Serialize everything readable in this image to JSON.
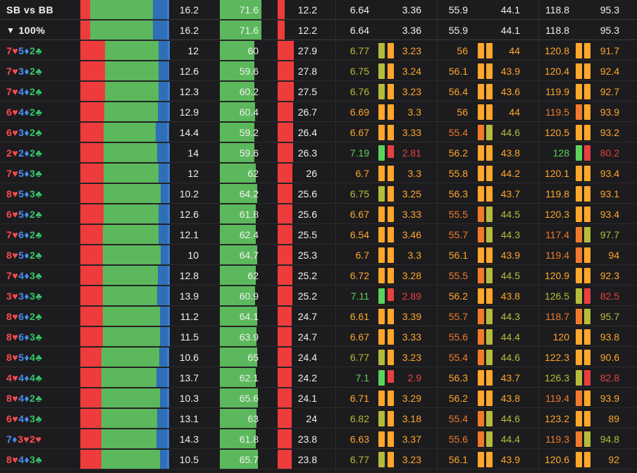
{
  "colors": {
    "fold": "#ee3b3b",
    "call": "#5cb85c",
    "raise_dark": "#2f6fb8",
    "raise_light": "#3b82d6",
    "lvl_green": "#5bd35b",
    "lvl_olive": "#b7bb3a",
    "lvl_orange": "#ffa62b",
    "lvl_dorange": "#f07a2a",
    "lvl_red": "#e84040"
  },
  "header": {
    "title": "SB vs BB",
    "filter_label": "100%",
    "filter_icon": "filter-icon",
    "values": [
      "16.2",
      "71.6",
      "12.2",
      "6.64",
      "3.36",
      "55.9",
      "44.1",
      "118.8",
      "95.3"
    ],
    "strategy": {
      "fold": 0.11,
      "call": 0.71,
      "raise_a": 0.16,
      "raise_b": 0.02
    },
    "bar3": 0.122
  },
  "rows": [
    {
      "hand": [
        [
          "7",
          "♥",
          "r"
        ],
        [
          "5",
          "♦",
          "b"
        ],
        [
          "2",
          "♣",
          "g"
        ]
      ],
      "strategy": {
        "fold": 0.28,
        "call": 0.6,
        "raise_a": 0.1,
        "raise_b": 0.02
      },
      "v1": "12",
      "v2": "60",
      "v3": "27.9",
      "bar3": 0.279,
      "e1": "6.77",
      "e2": "3.23",
      "eq1": "56",
      "eq2": "44",
      "ev1": "120.8",
      "ev2": "91.7",
      "lv": [
        "olive",
        "orange",
        "orange",
        "orange",
        "orange",
        "orange"
      ]
    },
    {
      "hand": [
        [
          "7",
          "♥",
          "r"
        ],
        [
          "3",
          "♦",
          "b"
        ],
        [
          "2",
          "♣",
          "g"
        ]
      ],
      "strategy": {
        "fold": 0.28,
        "call": 0.6,
        "raise_a": 0.11,
        "raise_b": 0.01
      },
      "v1": "12.6",
      "v2": "59.6",
      "v3": "27.8",
      "bar3": 0.278,
      "e1": "6.75",
      "e2": "3.24",
      "eq1": "56.1",
      "eq2": "43.9",
      "ev1": "120.4",
      "ev2": "92.4",
      "lv": [
        "olive",
        "orange",
        "orange",
        "orange",
        "orange",
        "orange"
      ]
    },
    {
      "hand": [
        [
          "7",
          "♥",
          "r"
        ],
        [
          "4",
          "♦",
          "b"
        ],
        [
          "2",
          "♣",
          "g"
        ]
      ],
      "strategy": {
        "fold": 0.28,
        "call": 0.6,
        "raise_a": 0.1,
        "raise_b": 0.02
      },
      "v1": "12.3",
      "v2": "60.2",
      "v3": "27.5",
      "bar3": 0.275,
      "e1": "6.76",
      "e2": "3.23",
      "eq1": "56.4",
      "eq2": "43.6",
      "ev1": "119.9",
      "ev2": "92.7",
      "lv": [
        "olive",
        "orange",
        "orange",
        "orange",
        "orange",
        "orange"
      ]
    },
    {
      "hand": [
        [
          "6",
          "♥",
          "r"
        ],
        [
          "4",
          "♦",
          "b"
        ],
        [
          "2",
          "♣",
          "g"
        ]
      ],
      "strategy": {
        "fold": 0.27,
        "call": 0.6,
        "raise_a": 0.11,
        "raise_b": 0.02
      },
      "v1": "12.9",
      "v2": "60.4",
      "v3": "26.7",
      "bar3": 0.267,
      "e1": "6.69",
      "e2": "3.3",
      "eq1": "56",
      "eq2": "44",
      "ev1": "119.5",
      "ev2": "93.9",
      "lv": [
        "orange",
        "orange",
        "orange",
        "orange",
        "dorange",
        "orange"
      ]
    },
    {
      "hand": [
        [
          "6",
          "♥",
          "r"
        ],
        [
          "3",
          "♦",
          "b"
        ],
        [
          "2",
          "♣",
          "g"
        ]
      ],
      "strategy": {
        "fold": 0.26,
        "call": 0.59,
        "raise_a": 0.13,
        "raise_b": 0.02
      },
      "v1": "14.4",
      "v2": "59.2",
      "v3": "26.4",
      "bar3": 0.264,
      "e1": "6.67",
      "e2": "3.33",
      "eq1": "55.4",
      "eq2": "44.6",
      "ev1": "120.5",
      "ev2": "93.2",
      "lv": [
        "orange",
        "orange",
        "dorange",
        "olive",
        "orange",
        "orange"
      ]
    },
    {
      "hand": [
        [
          "2",
          "♥",
          "r"
        ],
        [
          "2",
          "♦",
          "b"
        ],
        [
          "2",
          "♣",
          "g"
        ]
      ],
      "strategy": {
        "fold": 0.26,
        "call": 0.6,
        "raise_a": 0.12,
        "raise_b": 0.02
      },
      "v1": "14",
      "v2": "59.6",
      "v3": "26.3",
      "bar3": 0.263,
      "e1": "7.19",
      "e2": "2.81",
      "eq1": "56.2",
      "eq2": "43.8",
      "ev1": "128",
      "ev2": "80.2",
      "lv": [
        "green",
        "red",
        "orange",
        "orange",
        "green",
        "red"
      ]
    },
    {
      "hand": [
        [
          "7",
          "♥",
          "r"
        ],
        [
          "5",
          "♦",
          "b"
        ],
        [
          "3",
          "♣",
          "g"
        ]
      ],
      "strategy": {
        "fold": 0.26,
        "call": 0.62,
        "raise_a": 0.1,
        "raise_b": 0.02
      },
      "v1": "12",
      "v2": "62",
      "v3": "26",
      "bar3": 0.26,
      "e1": "6.7",
      "e2": "3.3",
      "eq1": "55.8",
      "eq2": "44.2",
      "ev1": "120.1",
      "ev2": "93.4",
      "lv": [
        "orange",
        "orange",
        "orange",
        "orange",
        "orange",
        "orange"
      ]
    },
    {
      "hand": [
        [
          "8",
          "♥",
          "r"
        ],
        [
          "5",
          "♦",
          "b"
        ],
        [
          "3",
          "♣",
          "g"
        ]
      ],
      "strategy": {
        "fold": 0.26,
        "call": 0.64,
        "raise_a": 0.08,
        "raise_b": 0.02
      },
      "v1": "10.2",
      "v2": "64.2",
      "v3": "25.6",
      "bar3": 0.256,
      "e1": "6.75",
      "e2": "3.25",
      "eq1": "56.3",
      "eq2": "43.7",
      "ev1": "119.8",
      "ev2": "93.1",
      "lv": [
        "olive",
        "orange",
        "orange",
        "orange",
        "orange",
        "orange"
      ]
    },
    {
      "hand": [
        [
          "6",
          "♥",
          "r"
        ],
        [
          "5",
          "♦",
          "b"
        ],
        [
          "2",
          "♣",
          "g"
        ]
      ],
      "strategy": {
        "fold": 0.26,
        "call": 0.62,
        "raise_a": 0.1,
        "raise_b": 0.02
      },
      "v1": "12.6",
      "v2": "61.8",
      "v3": "25.6",
      "bar3": 0.256,
      "e1": "6.67",
      "e2": "3.33",
      "eq1": "55.5",
      "eq2": "44.5",
      "ev1": "120.3",
      "ev2": "93.4",
      "lv": [
        "orange",
        "orange",
        "dorange",
        "olive",
        "orange",
        "orange"
      ]
    },
    {
      "hand": [
        [
          "7",
          "♥",
          "r"
        ],
        [
          "6",
          "♦",
          "b"
        ],
        [
          "2",
          "♣",
          "g"
        ]
      ],
      "strategy": {
        "fold": 0.25,
        "call": 0.63,
        "raise_a": 0.1,
        "raise_b": 0.02
      },
      "v1": "12.1",
      "v2": "62.4",
      "v3": "25.5",
      "bar3": 0.255,
      "e1": "6.54",
      "e2": "3.46",
      "eq1": "55.7",
      "eq2": "44.3",
      "ev1": "117.4",
      "ev2": "97.7",
      "lv": [
        "orange",
        "orange",
        "dorange",
        "olive",
        "dorange",
        "olive"
      ]
    },
    {
      "hand": [
        [
          "8",
          "♥",
          "r"
        ],
        [
          "5",
          "♦",
          "b"
        ],
        [
          "2",
          "♣",
          "g"
        ]
      ],
      "strategy": {
        "fold": 0.25,
        "call": 0.65,
        "raise_a": 0.08,
        "raise_b": 0.02
      },
      "v1": "10",
      "v2": "64.7",
      "v3": "25.3",
      "bar3": 0.253,
      "e1": "6.7",
      "e2": "3.3",
      "eq1": "56.1",
      "eq2": "43.9",
      "ev1": "119.4",
      "ev2": "94",
      "lv": [
        "orange",
        "orange",
        "orange",
        "orange",
        "dorange",
        "orange"
      ]
    },
    {
      "hand": [
        [
          "7",
          "♥",
          "r"
        ],
        [
          "4",
          "♦",
          "b"
        ],
        [
          "3",
          "♣",
          "g"
        ]
      ],
      "strategy": {
        "fold": 0.25,
        "call": 0.62,
        "raise_a": 0.11,
        "raise_b": 0.02
      },
      "v1": "12.8",
      "v2": "62",
      "v3": "25.2",
      "bar3": 0.252,
      "e1": "6.72",
      "e2": "3.28",
      "eq1": "55.5",
      "eq2": "44.5",
      "ev1": "120.9",
      "ev2": "92.3",
      "lv": [
        "orange",
        "orange",
        "dorange",
        "olive",
        "orange",
        "orange"
      ]
    },
    {
      "hand": [
        [
          "3",
          "♥",
          "r"
        ],
        [
          "3",
          "♦",
          "b"
        ],
        [
          "3",
          "♣",
          "g"
        ]
      ],
      "strategy": {
        "fold": 0.25,
        "call": 0.61,
        "raise_a": 0.12,
        "raise_b": 0.02
      },
      "v1": "13.9",
      "v2": "60.9",
      "v3": "25.2",
      "bar3": 0.252,
      "e1": "7.11",
      "e2": "2.89",
      "eq1": "56.2",
      "eq2": "43.8",
      "ev1": "126.5",
      "ev2": "82.5",
      "lv": [
        "green",
        "red",
        "orange",
        "orange",
        "olive",
        "red"
      ]
    },
    {
      "hand": [
        [
          "8",
          "♥",
          "r"
        ],
        [
          "6",
          "♦",
          "b"
        ],
        [
          "2",
          "♣",
          "g"
        ]
      ],
      "strategy": {
        "fold": 0.25,
        "call": 0.64,
        "raise_a": 0.09,
        "raise_b": 0.02
      },
      "v1": "11.2",
      "v2": "64.1",
      "v3": "24.7",
      "bar3": 0.247,
      "e1": "6.61",
      "e2": "3.39",
      "eq1": "55.7",
      "eq2": "44.3",
      "ev1": "118.7",
      "ev2": "95.7",
      "lv": [
        "orange",
        "orange",
        "dorange",
        "olive",
        "dorange",
        "olive"
      ]
    },
    {
      "hand": [
        [
          "8",
          "♥",
          "r"
        ],
        [
          "6",
          "♦",
          "b"
        ],
        [
          "3",
          "♣",
          "g"
        ]
      ],
      "strategy": {
        "fold": 0.25,
        "call": 0.64,
        "raise_a": 0.09,
        "raise_b": 0.02
      },
      "v1": "11.5",
      "v2": "63.9",
      "v3": "24.7",
      "bar3": 0.247,
      "e1": "6.67",
      "e2": "3.33",
      "eq1": "55.6",
      "eq2": "44.4",
      "ev1": "120",
      "ev2": "93.8",
      "lv": [
        "orange",
        "orange",
        "dorange",
        "olive",
        "orange",
        "orange"
      ]
    },
    {
      "hand": [
        [
          "8",
          "♥",
          "r"
        ],
        [
          "5",
          "♦",
          "b"
        ],
        [
          "4",
          "♣",
          "g"
        ]
      ],
      "strategy": {
        "fold": 0.24,
        "call": 0.65,
        "raise_a": 0.09,
        "raise_b": 0.02
      },
      "v1": "10.6",
      "v2": "65",
      "v3": "24.4",
      "bar3": 0.244,
      "e1": "6.77",
      "e2": "3.23",
      "eq1": "55.4",
      "eq2": "44.6",
      "ev1": "122.3",
      "ev2": "90.6",
      "lv": [
        "olive",
        "orange",
        "dorange",
        "olive",
        "orange",
        "orange"
      ]
    },
    {
      "hand": [
        [
          "4",
          "♥",
          "r"
        ],
        [
          "4",
          "♦",
          "b"
        ],
        [
          "4",
          "♣",
          "g"
        ]
      ],
      "strategy": {
        "fold": 0.24,
        "call": 0.62,
        "raise_a": 0.12,
        "raise_b": 0.02
      },
      "v1": "13.7",
      "v2": "62.1",
      "v3": "24.2",
      "bar3": 0.242,
      "e1": "7.1",
      "e2": "2.9",
      "eq1": "56.3",
      "eq2": "43.7",
      "ev1": "126.3",
      "ev2": "82.8",
      "lv": [
        "green",
        "red",
        "orange",
        "orange",
        "olive",
        "red"
      ]
    },
    {
      "hand": [
        [
          "8",
          "♥",
          "r"
        ],
        [
          "4",
          "♦",
          "b"
        ],
        [
          "2",
          "♣",
          "g"
        ]
      ],
      "strategy": {
        "fold": 0.24,
        "call": 0.66,
        "raise_a": 0.08,
        "raise_b": 0.02
      },
      "v1": "10.3",
      "v2": "65.6",
      "v3": "24.1",
      "bar3": 0.241,
      "e1": "6.71",
      "e2": "3.29",
      "eq1": "56.2",
      "eq2": "43.8",
      "ev1": "119.4",
      "ev2": "93.9",
      "lv": [
        "orange",
        "orange",
        "orange",
        "orange",
        "dorange",
        "orange"
      ]
    },
    {
      "hand": [
        [
          "6",
          "♥",
          "r"
        ],
        [
          "4",
          "♦",
          "b"
        ],
        [
          "3",
          "♣",
          "g"
        ]
      ],
      "strategy": {
        "fold": 0.24,
        "call": 0.63,
        "raise_a": 0.11,
        "raise_b": 0.02
      },
      "v1": "13.1",
      "v2": "63",
      "v3": "24",
      "bar3": 0.24,
      "e1": "6.82",
      "e2": "3.18",
      "eq1": "55.4",
      "eq2": "44.6",
      "ev1": "123.2",
      "ev2": "89",
      "lv": [
        "olive",
        "orange",
        "dorange",
        "olive",
        "orange",
        "orange"
      ]
    },
    {
      "hand": [
        [
          "7",
          "♦",
          "b"
        ],
        [
          "3",
          "♥",
          "r"
        ],
        [
          "2",
          "♥",
          "r"
        ]
      ],
      "strategy": {
        "fold": 0.24,
        "call": 0.62,
        "raise_a": 0.12,
        "raise_b": 0.02
      },
      "v1": "14.3",
      "v2": "61.8",
      "v3": "23.8",
      "bar3": 0.238,
      "e1": "6.63",
      "e2": "3.37",
      "eq1": "55.6",
      "eq2": "44.4",
      "ev1": "119.3",
      "ev2": "94.8",
      "lv": [
        "orange",
        "orange",
        "dorange",
        "olive",
        "dorange",
        "olive"
      ]
    },
    {
      "hand": [
        [
          "8",
          "♥",
          "r"
        ],
        [
          "4",
          "♦",
          "b"
        ],
        [
          "3",
          "♣",
          "g"
        ]
      ],
      "strategy": {
        "fold": 0.24,
        "call": 0.66,
        "raise_a": 0.08,
        "raise_b": 0.02
      },
      "v1": "10.5",
      "v2": "65.7",
      "v3": "23.8",
      "bar3": 0.238,
      "e1": "6.77",
      "e2": "3.23",
      "eq1": "56.1",
      "eq2": "43.9",
      "ev1": "120.6",
      "ev2": "92",
      "lv": [
        "olive",
        "orange",
        "orange",
        "orange",
        "orange",
        "orange"
      ]
    }
  ]
}
